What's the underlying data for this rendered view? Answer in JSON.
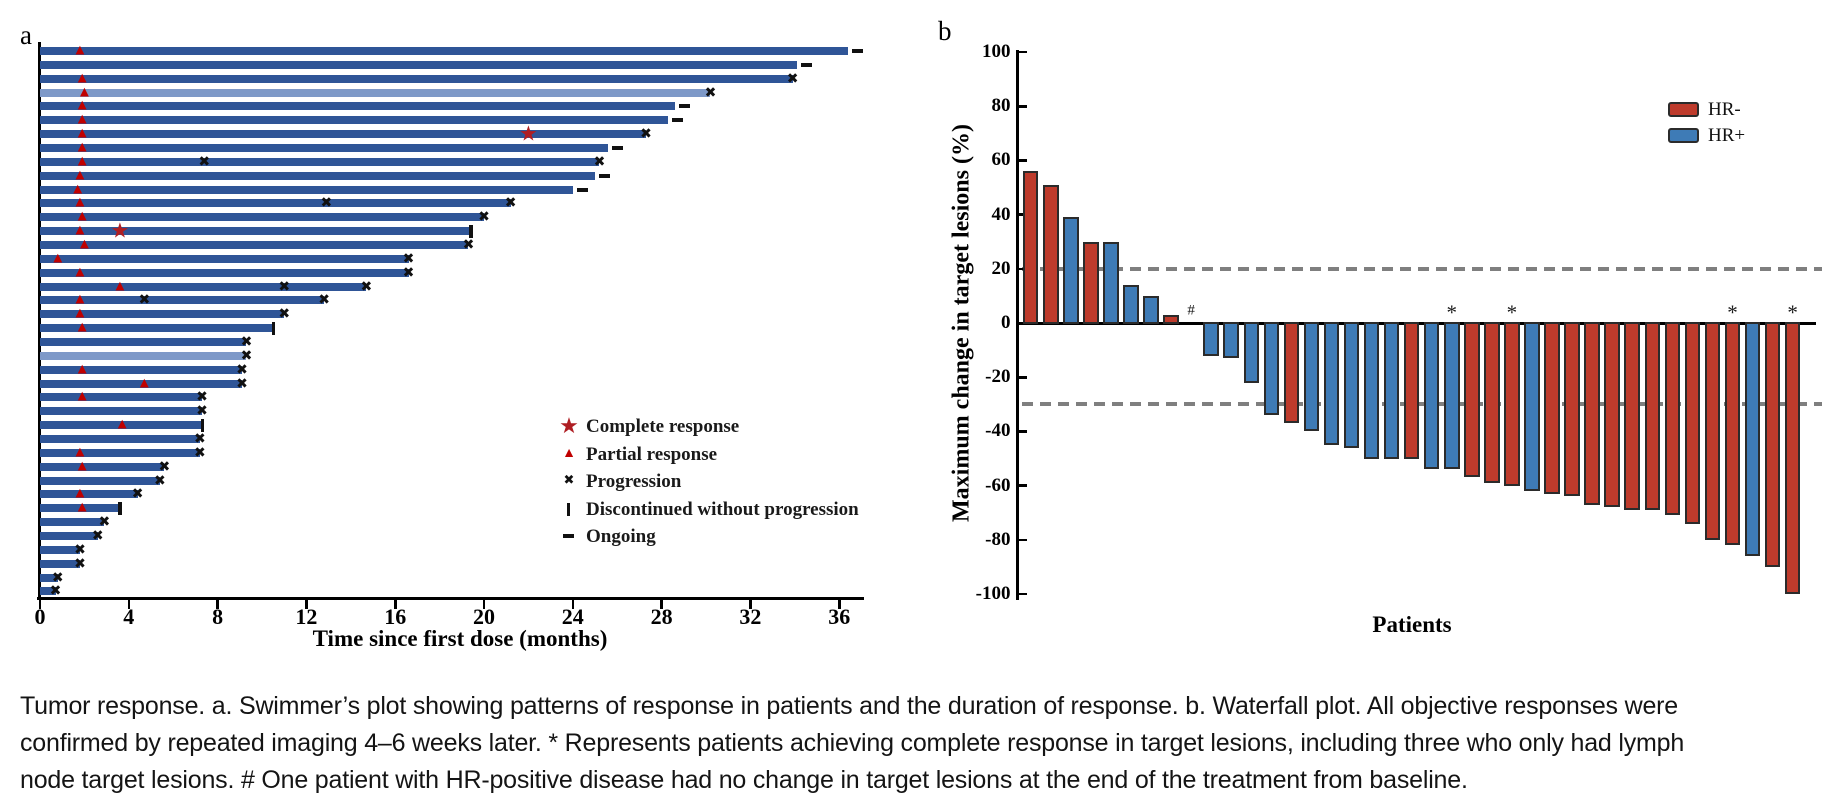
{
  "caption": {
    "lines": [
      "Tumor response. a. Swimmer’s plot showing patterns of response in patients and the duration of response. b. Waterfall plot. All objective responses were",
      "confirmed by repeated imaging 4–6 weeks later. * Represents patients achieving complete response in target lesions, including three who only had lymph",
      "node target lesions. # One patient with HR-positive disease had no change in target lesions at the end of the treatment from baseline."
    ]
  },
  "colors": {
    "swimmer_bar": "#2F5597",
    "swimmer_bar_light": "#7E99C8",
    "triangle_red": "#C00000",
    "star_red": "#AF1E23",
    "x_black": "#111111",
    "hr_neg_red": "#BE3B2C",
    "hr_pos_blue": "#3E7BB6",
    "bar_border": "#2B2B2B",
    "dashed_gray": "#7F7F7F"
  },
  "chart_data": [
    {
      "id": "swimmer",
      "type": "bar",
      "orientation": "horizontal",
      "panel_label": "a",
      "xlabel": "Time since first dose (months)",
      "xlim": [
        0,
        37
      ],
      "x_ticks": [
        0,
        4,
        8,
        12,
        16,
        20,
        24,
        28,
        32,
        36
      ],
      "legend": [
        {
          "symbol": "star",
          "label": "Complete response"
        },
        {
          "symbol": "triangle",
          "label": "Partial response"
        },
        {
          "symbol": "x",
          "label": "Progression"
        },
        {
          "symbol": "vbar",
          "label": "Discontinued without progression"
        },
        {
          "symbol": "dash",
          "label": "Ongoing"
        }
      ],
      "patients": [
        {
          "duration": 36.4,
          "tri": 1.8,
          "star": null,
          "xmarks": [],
          "end": "ongoing",
          "shade": "dark"
        },
        {
          "duration": 34.1,
          "tri": null,
          "star": null,
          "xmarks": [],
          "end": "ongoing",
          "shade": "dark"
        },
        {
          "duration": 33.9,
          "tri": 1.9,
          "star": null,
          "xmarks": [],
          "end": "progression",
          "shade": "dark"
        },
        {
          "duration": 30.2,
          "tri": 2.0,
          "star": null,
          "xmarks": [],
          "end": "progression",
          "shade": "light"
        },
        {
          "duration": 28.6,
          "tri": 1.9,
          "star": null,
          "xmarks": [],
          "end": "ongoing",
          "shade": "dark"
        },
        {
          "duration": 28.3,
          "tri": 1.9,
          "star": null,
          "xmarks": [],
          "end": "ongoing",
          "shade": "dark"
        },
        {
          "duration": 27.3,
          "tri": 1.9,
          "star": 22.0,
          "xmarks": [],
          "end": "progression",
          "shade": "dark"
        },
        {
          "duration": 25.6,
          "tri": 1.9,
          "star": null,
          "xmarks": [],
          "end": "ongoing",
          "shade": "dark"
        },
        {
          "duration": 25.2,
          "tri": 1.9,
          "star": null,
          "xmarks": [
            7.4
          ],
          "end": "progression",
          "shade": "dark"
        },
        {
          "duration": 25.0,
          "tri": 1.8,
          "star": null,
          "xmarks": [],
          "end": "ongoing",
          "shade": "dark"
        },
        {
          "duration": 24.0,
          "tri": 1.7,
          "star": null,
          "xmarks": [],
          "end": "ongoing",
          "shade": "dark"
        },
        {
          "duration": 21.2,
          "tri": 1.8,
          "star": null,
          "xmarks": [
            12.9
          ],
          "end": "progression",
          "shade": "dark"
        },
        {
          "duration": 20.0,
          "tri": 1.9,
          "star": null,
          "xmarks": [],
          "end": "progression",
          "shade": "dark"
        },
        {
          "duration": 19.4,
          "tri": 1.8,
          "star": 3.6,
          "xmarks": [],
          "end": "discontinued",
          "shade": "dark"
        },
        {
          "duration": 19.3,
          "tri": 2.0,
          "star": null,
          "xmarks": [],
          "end": "progression",
          "shade": "dark"
        },
        {
          "duration": 16.6,
          "tri": 0.8,
          "star": null,
          "xmarks": [],
          "end": "progression",
          "shade": "dark"
        },
        {
          "duration": 16.6,
          "tri": 1.8,
          "star": null,
          "xmarks": [],
          "end": "progression",
          "shade": "dark"
        },
        {
          "duration": 14.7,
          "tri": 3.6,
          "star": null,
          "xmarks": [
            11.0
          ],
          "end": "progression",
          "shade": "dark"
        },
        {
          "duration": 12.8,
          "tri": 1.8,
          "star": null,
          "xmarks": [
            4.7
          ],
          "end": "progression",
          "shade": "dark"
        },
        {
          "duration": 11.0,
          "tri": 1.8,
          "star": null,
          "xmarks": [],
          "end": "progression",
          "shade": "dark"
        },
        {
          "duration": 10.5,
          "tri": 1.9,
          "star": null,
          "xmarks": [],
          "end": "discontinued",
          "shade": "dark"
        },
        {
          "duration": 9.3,
          "tri": null,
          "star": null,
          "xmarks": [],
          "end": "progression",
          "shade": "dark"
        },
        {
          "duration": 9.3,
          "tri": null,
          "star": null,
          "xmarks": [],
          "end": "progression",
          "shade": "light"
        },
        {
          "duration": 9.1,
          "tri": 1.9,
          "star": null,
          "xmarks": [],
          "end": "progression",
          "shade": "dark"
        },
        {
          "duration": 9.1,
          "tri": 4.7,
          "star": null,
          "xmarks": [],
          "end": "progression",
          "shade": "dark"
        },
        {
          "duration": 7.3,
          "tri": 1.9,
          "star": null,
          "xmarks": [],
          "end": "progression",
          "shade": "dark"
        },
        {
          "duration": 7.3,
          "tri": null,
          "star": null,
          "xmarks": [],
          "end": "progression",
          "shade": "dark"
        },
        {
          "duration": 7.3,
          "tri": 3.7,
          "star": null,
          "xmarks": [],
          "end": "discontinued",
          "shade": "dark"
        },
        {
          "duration": 7.2,
          "tri": null,
          "star": null,
          "xmarks": [],
          "end": "progression",
          "shade": "dark"
        },
        {
          "duration": 7.2,
          "tri": 1.8,
          "star": null,
          "xmarks": [],
          "end": "progression",
          "shade": "dark"
        },
        {
          "duration": 5.6,
          "tri": 1.9,
          "star": null,
          "xmarks": [],
          "end": "progression",
          "shade": "dark"
        },
        {
          "duration": 5.4,
          "tri": null,
          "star": null,
          "xmarks": [],
          "end": "progression",
          "shade": "dark"
        },
        {
          "duration": 4.4,
          "tri": 1.8,
          "star": null,
          "xmarks": [],
          "end": "progression",
          "shade": "dark"
        },
        {
          "duration": 3.6,
          "tri": 1.9,
          "star": null,
          "xmarks": [],
          "end": "discontinued",
          "shade": "dark"
        },
        {
          "duration": 2.9,
          "tri": null,
          "star": null,
          "xmarks": [],
          "end": "progression",
          "shade": "dark"
        },
        {
          "duration": 2.6,
          "tri": null,
          "star": null,
          "xmarks": [],
          "end": "progression",
          "shade": "dark"
        },
        {
          "duration": 1.8,
          "tri": null,
          "star": null,
          "xmarks": [],
          "end": "progression",
          "shade": "dark"
        },
        {
          "duration": 1.8,
          "tri": null,
          "star": null,
          "xmarks": [],
          "end": "progression",
          "shade": "dark"
        },
        {
          "duration": 0.8,
          "tri": null,
          "star": null,
          "xmarks": [],
          "end": "progression",
          "shade": "dark"
        },
        {
          "duration": 0.7,
          "tri": null,
          "star": null,
          "xmarks": [],
          "end": "progression",
          "shade": "dark"
        }
      ]
    },
    {
      "id": "waterfall",
      "type": "bar",
      "panel_label": "b",
      "ylabel": "Maximum change in target lesions (%)",
      "xlabel": "Patients",
      "ylim": [
        -100,
        100
      ],
      "y_ticks": [
        100,
        80,
        60,
        40,
        20,
        0,
        -20,
        -40,
        -60,
        -80,
        -100
      ],
      "reference_lines": [
        20,
        -30
      ],
      "legend": [
        {
          "label": "HR-",
          "group": "HR-"
        },
        {
          "label": "HR+",
          "group": "HR+"
        }
      ],
      "bars": [
        {
          "value": 56,
          "group": "HR-",
          "mark": null
        },
        {
          "value": 51,
          "group": "HR-",
          "mark": null
        },
        {
          "value": 39,
          "group": "HR+",
          "mark": null
        },
        {
          "value": 30,
          "group": "HR-",
          "mark": null
        },
        {
          "value": 30,
          "group": "HR+",
          "mark": null
        },
        {
          "value": 14,
          "group": "HR+",
          "mark": null
        },
        {
          "value": 10,
          "group": "HR+",
          "mark": null
        },
        {
          "value": 3,
          "group": "HR-",
          "mark": null
        },
        {
          "value": 0,
          "group": "HR+",
          "mark": "#"
        },
        {
          "value": -12,
          "group": "HR+",
          "mark": null
        },
        {
          "value": -13,
          "group": "HR+",
          "mark": null
        },
        {
          "value": -22,
          "group": "HR+",
          "mark": null
        },
        {
          "value": -34,
          "group": "HR+",
          "mark": null
        },
        {
          "value": -37,
          "group": "HR-",
          "mark": null
        },
        {
          "value": -40,
          "group": "HR+",
          "mark": null
        },
        {
          "value": -45,
          "group": "HR+",
          "mark": null
        },
        {
          "value": -46,
          "group": "HR+",
          "mark": null
        },
        {
          "value": -50,
          "group": "HR+",
          "mark": null
        },
        {
          "value": -50,
          "group": "HR+",
          "mark": null
        },
        {
          "value": -50,
          "group": "HR-",
          "mark": null
        },
        {
          "value": -54,
          "group": "HR+",
          "mark": null
        },
        {
          "value": -54,
          "group": "HR+",
          "mark": "*"
        },
        {
          "value": -57,
          "group": "HR-",
          "mark": null
        },
        {
          "value": -59,
          "group": "HR-",
          "mark": null
        },
        {
          "value": -60,
          "group": "HR-",
          "mark": "*"
        },
        {
          "value": -62,
          "group": "HR+",
          "mark": null
        },
        {
          "value": -63,
          "group": "HR-",
          "mark": null
        },
        {
          "value": -64,
          "group": "HR-",
          "mark": null
        },
        {
          "value": -67,
          "group": "HR-",
          "mark": null
        },
        {
          "value": -68,
          "group": "HR-",
          "mark": null
        },
        {
          "value": -69,
          "group": "HR-",
          "mark": null
        },
        {
          "value": -69,
          "group": "HR-",
          "mark": null
        },
        {
          "value": -71,
          "group": "HR-",
          "mark": null
        },
        {
          "value": -74,
          "group": "HR-",
          "mark": null
        },
        {
          "value": -80,
          "group": "HR-",
          "mark": null
        },
        {
          "value": -82,
          "group": "HR-",
          "mark": "*"
        },
        {
          "value": -86,
          "group": "HR+",
          "mark": null
        },
        {
          "value": -90,
          "group": "HR-",
          "mark": null
        },
        {
          "value": -100,
          "group": "HR-",
          "mark": "*"
        }
      ]
    }
  ]
}
